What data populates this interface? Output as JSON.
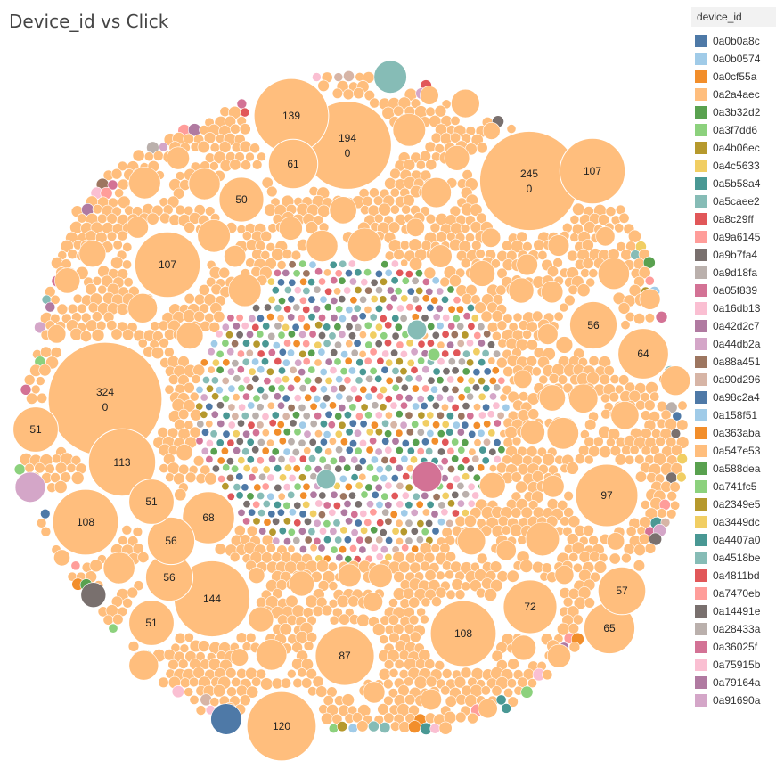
{
  "chart_data": {
    "type": "packed-bubble",
    "title": "Device_id vs Click",
    "legend_title": "device_id",
    "legend": [
      {
        "id": "0a0b0a8c",
        "color": "#4e79a7"
      },
      {
        "id": "0a0b0574",
        "color": "#a0cbe8"
      },
      {
        "id": "0a0cf55a",
        "color": "#f28e2b"
      },
      {
        "id": "0a2a4aec",
        "color": "#ffbe7d"
      },
      {
        "id": "0a3b32d2",
        "color": "#59a14f"
      },
      {
        "id": "0a3f7dd6",
        "color": "#8cd17d"
      },
      {
        "id": "0a4b06ec",
        "color": "#b6992d"
      },
      {
        "id": "0a4c5633",
        "color": "#f1ce63"
      },
      {
        "id": "0a5b58a4",
        "color": "#499894"
      },
      {
        "id": "0a5caee2",
        "color": "#86bcb6"
      },
      {
        "id": "0a8c29ff",
        "color": "#e15759"
      },
      {
        "id": "0a9a6145",
        "color": "#ff9d9a"
      },
      {
        "id": "0a9b7fa4",
        "color": "#79706e"
      },
      {
        "id": "0a9d18fa",
        "color": "#bab0ac"
      },
      {
        "id": "0a05f839",
        "color": "#d37295"
      },
      {
        "id": "0a16db13",
        "color": "#fabfd2"
      },
      {
        "id": "0a42d2c7",
        "color": "#b07aa1"
      },
      {
        "id": "0a44db2a",
        "color": "#d4a6c8"
      },
      {
        "id": "0a88a451",
        "color": "#9d7660"
      },
      {
        "id": "0a90d296",
        "color": "#d7b5a6"
      },
      {
        "id": "0a98c2a4",
        "color": "#4e79a7"
      },
      {
        "id": "0a158f51",
        "color": "#a0cbe8"
      },
      {
        "id": "0a363aba",
        "color": "#f28e2b"
      },
      {
        "id": "0a547e53",
        "color": "#ffbe7d"
      },
      {
        "id": "0a588dea",
        "color": "#59a14f"
      },
      {
        "id": "0a741fc5",
        "color": "#8cd17d"
      },
      {
        "id": "0a2349e5",
        "color": "#b6992d"
      },
      {
        "id": "0a3449dc",
        "color": "#f1ce63"
      },
      {
        "id": "0a4407a0",
        "color": "#499894"
      },
      {
        "id": "0a4518be",
        "color": "#86bcb6"
      },
      {
        "id": "0a4811bd",
        "color": "#e15759"
      },
      {
        "id": "0a7470eb",
        "color": "#ff9d9a"
      },
      {
        "id": "0a14491e",
        "color": "#79706e"
      },
      {
        "id": "0a28433a",
        "color": "#bab0ac"
      },
      {
        "id": "0a36025f",
        "color": "#d37295"
      },
      {
        "id": "0a75915b",
        "color": "#fabfd2"
      },
      {
        "id": "0a79164a",
        "color": "#b07aa1"
      },
      {
        "id": "0a91690a",
        "color": "#d4a6c8"
      }
    ],
    "main_color": "#ffbe7d",
    "labeled_bubbles": [
      {
        "value": 324,
        "click": 0
      },
      {
        "value": 245,
        "click": 0
      },
      {
        "value": 194,
        "click": 0
      },
      {
        "value": 144
      },
      {
        "value": 139
      },
      {
        "value": 120
      },
      {
        "value": 113
      },
      {
        "value": 108
      },
      {
        "value": 108
      },
      {
        "value": 107
      },
      {
        "value": 107
      },
      {
        "value": 97
      },
      {
        "value": 87
      },
      {
        "value": 72
      },
      {
        "value": 68
      },
      {
        "value": 65
      },
      {
        "value": 64
      },
      {
        "value": 61
      },
      {
        "value": 57
      },
      {
        "value": 56
      },
      {
        "value": 56
      },
      {
        "value": 56
      },
      {
        "value": 51
      },
      {
        "value": 51
      },
      {
        "value": 51
      },
      {
        "value": 50
      }
    ]
  }
}
